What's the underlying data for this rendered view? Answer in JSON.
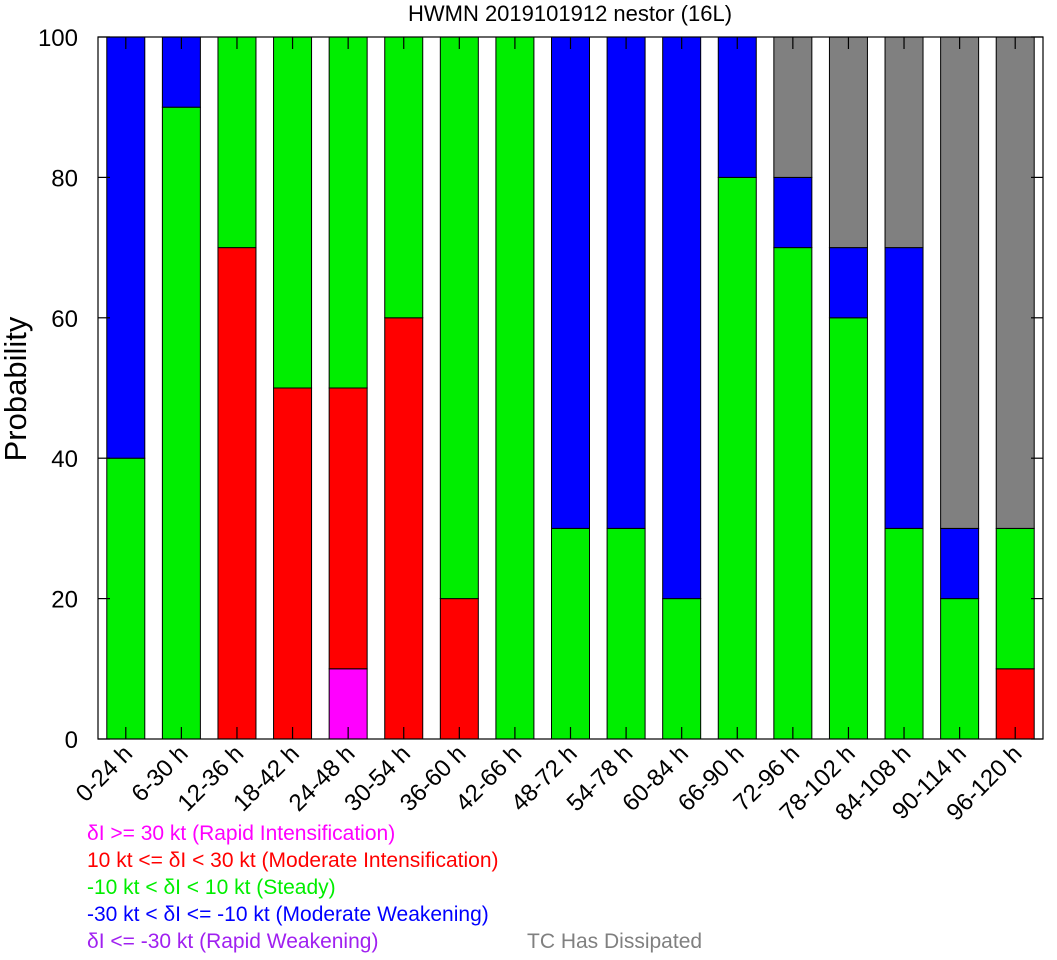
{
  "chart_data": {
    "type": "bar",
    "stacked": true,
    "title": "HWMN 2019101912 nestor (16L)",
    "xlabel": "",
    "ylabel": "Probability",
    "ylim": [
      0,
      100
    ],
    "yticks": [
      0,
      20,
      40,
      60,
      80,
      100
    ],
    "categories": [
      "0-24 h",
      "6-30 h",
      "12-36 h",
      "18-42 h",
      "24-48 h",
      "30-54 h",
      "36-60 h",
      "42-66 h",
      "48-72 h",
      "54-78 h",
      "60-84 h",
      "66-90 h",
      "72-96 h",
      "78-102 h",
      "84-108 h",
      "90-114 h",
      "96-120 h"
    ],
    "series": [
      {
        "name": "Rapid Weakening",
        "color": "#a020f0",
        "values": [
          0,
          0,
          0,
          0,
          0,
          0,
          0,
          0,
          0,
          0,
          0,
          0,
          0,
          0,
          0,
          0,
          0
        ]
      },
      {
        "name": "Rapid Intensification",
        "color": "#ff00ff",
        "values": [
          0,
          0,
          0,
          0,
          10,
          0,
          0,
          0,
          0,
          0,
          0,
          0,
          0,
          0,
          0,
          0,
          0
        ]
      },
      {
        "name": "Moderate Intensification",
        "color": "#ff0000",
        "values": [
          0,
          0,
          70,
          50,
          40,
          60,
          20,
          0,
          0,
          0,
          0,
          0,
          0,
          0,
          0,
          0,
          10
        ]
      },
      {
        "name": "Steady",
        "color": "#00ee00",
        "values": [
          40,
          90,
          30,
          50,
          50,
          40,
          80,
          100,
          30,
          30,
          20,
          80,
          70,
          60,
          30,
          20,
          20
        ]
      },
      {
        "name": "Moderate Weakening",
        "color": "#0000ff",
        "values": [
          60,
          10,
          0,
          0,
          0,
          0,
          0,
          0,
          70,
          70,
          80,
          20,
          10,
          10,
          40,
          10,
          0
        ]
      },
      {
        "name": "TC Has Dissipated",
        "color": "#808080",
        "values": [
          0,
          0,
          0,
          0,
          0,
          0,
          0,
          0,
          0,
          0,
          0,
          0,
          20,
          30,
          30,
          70,
          70
        ]
      }
    ],
    "legend": [
      {
        "text": "δI >= 30 kt (Rapid Intensification)",
        "color": "#ff00ff"
      },
      {
        "text": "10 kt <= δI < 30 kt (Moderate Intensification)",
        "color": "#ff0000"
      },
      {
        "text": "-10 kt < δI < 10 kt (Steady)",
        "color": "#00ee00"
      },
      {
        "text": "-30 kt < δI <= -10 kt (Moderate Weakening)",
        "color": "#0000ff"
      },
      {
        "text": "δI <= -30 kt (Rapid Weakening)",
        "color": "#a020f0"
      },
      {
        "text": "TC Has Dissipated",
        "color": "#808080"
      }
    ]
  }
}
